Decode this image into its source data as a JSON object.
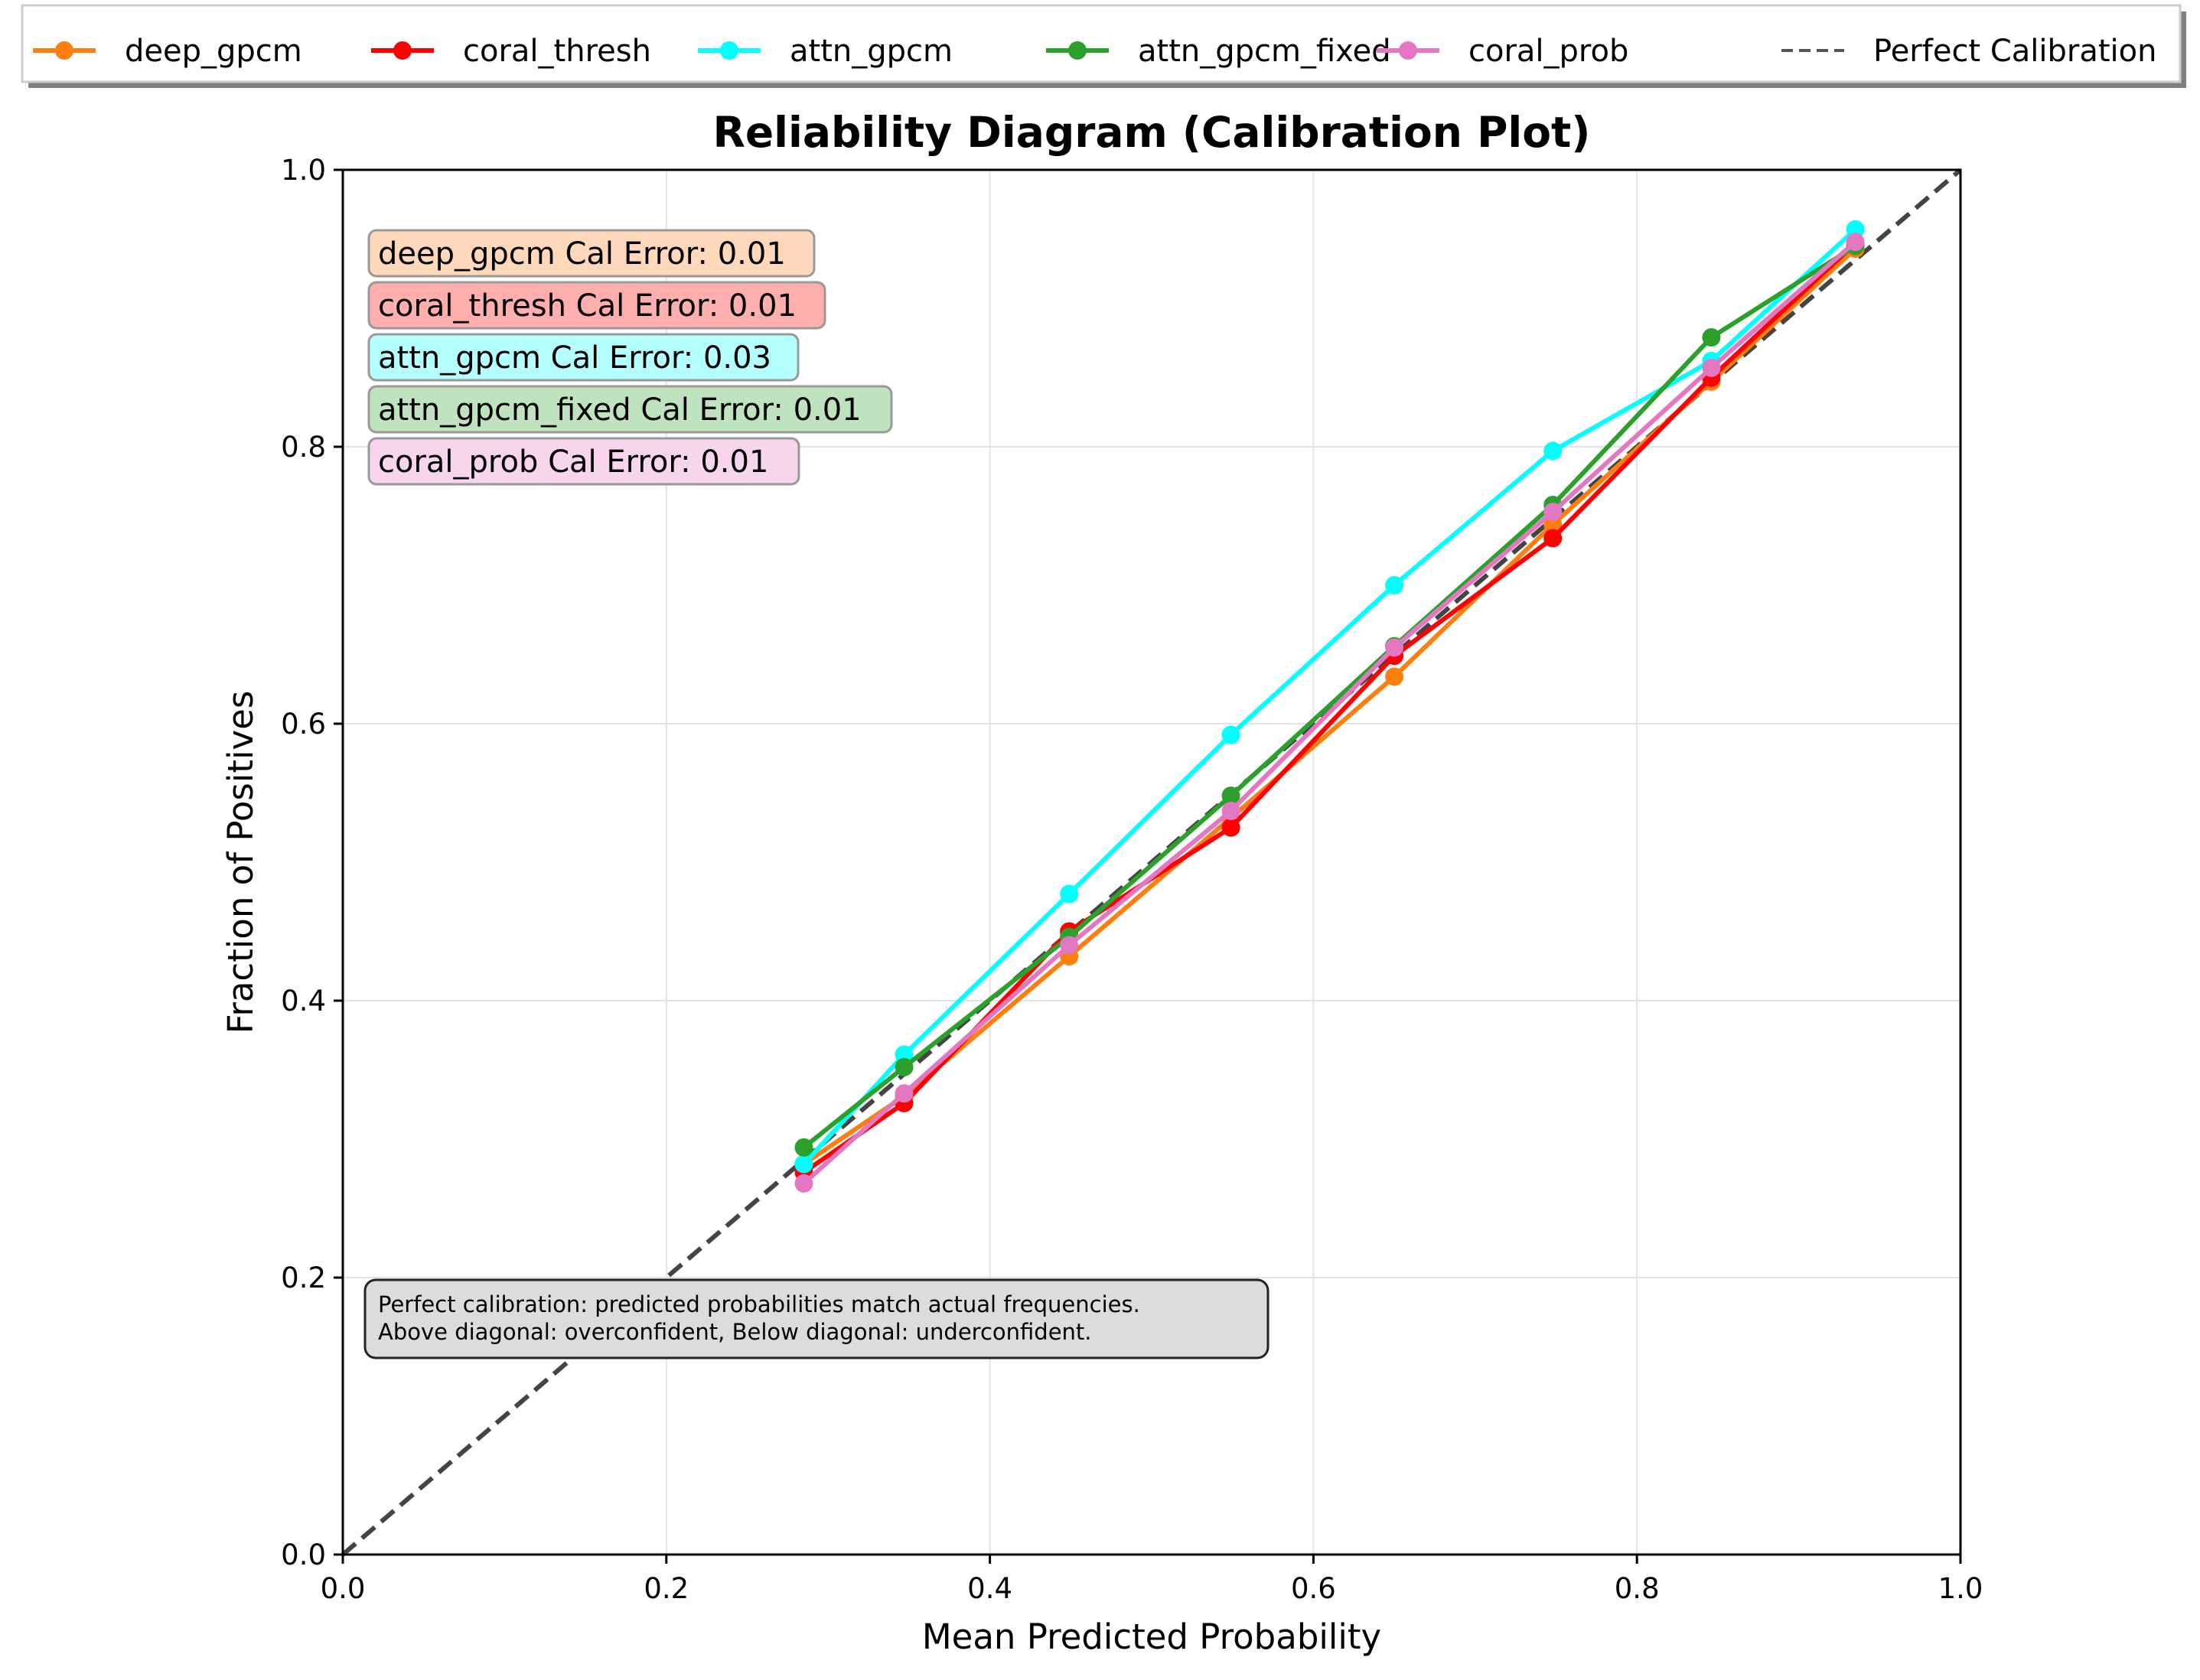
{
  "chart_data": {
    "type": "line",
    "title": "Reliability Diagram (Calibration Plot)",
    "xlabel": "Mean Predicted Probability",
    "ylabel": "Fraction of Positives",
    "xlim": [
      0.0,
      1.0
    ],
    "ylim": [
      0.0,
      1.0
    ],
    "xticks": [
      "0.0",
      "0.2",
      "0.4",
      "0.6",
      "0.8",
      "1.0"
    ],
    "yticks": [
      "0.0",
      "0.2",
      "0.4",
      "0.6",
      "0.8",
      "1.0"
    ],
    "grid": true,
    "legend_position": "top, outside plot",
    "series": [
      {
        "name": "deep_gpcm",
        "color": "#ff7f0e",
        "x": [
          0.285,
          0.347,
          0.449,
          0.549,
          0.65,
          0.748,
          0.846,
          0.935
        ],
        "y": [
          0.282,
          0.331,
          0.432,
          0.532,
          0.634,
          0.744,
          0.847,
          0.943
        ]
      },
      {
        "name": "coral_thresh",
        "color": "#ff0000",
        "x": [
          0.285,
          0.347,
          0.449,
          0.549,
          0.65,
          0.748,
          0.846,
          0.935
        ],
        "y": [
          0.276,
          0.326,
          0.45,
          0.525,
          0.649,
          0.734,
          0.85,
          0.947
        ]
      },
      {
        "name": "attn_gpcm",
        "color": "#00ffff",
        "x": [
          0.285,
          0.347,
          0.449,
          0.549,
          0.65,
          0.748,
          0.846,
          0.935
        ],
        "y": [
          0.282,
          0.361,
          0.477,
          0.592,
          0.7,
          0.797,
          0.862,
          0.957
        ]
      },
      {
        "name": "attn_gpcm_fixed",
        "color": "#2ca02c",
        "x": [
          0.285,
          0.347,
          0.449,
          0.549,
          0.65,
          0.748,
          0.846,
          0.935
        ],
        "y": [
          0.294,
          0.352,
          0.446,
          0.548,
          0.656,
          0.758,
          0.879,
          0.945
        ]
      },
      {
        "name": "coral_prob",
        "color": "#e377c2",
        "x": [
          0.285,
          0.347,
          0.449,
          0.549,
          0.65,
          0.748,
          0.846,
          0.935
        ],
        "y": [
          0.268,
          0.333,
          0.44,
          0.537,
          0.655,
          0.753,
          0.857,
          0.948
        ]
      }
    ],
    "reference": {
      "name": "Perfect Calibration",
      "color": "#444444",
      "x": [
        0,
        1
      ],
      "y": [
        0,
        1
      ]
    },
    "annotations": {
      "errors": [
        {
          "text": "deep_gpcm Cal Error: 0.01",
          "bg": "#ffd8bc"
        },
        {
          "text": "coral_thresh Cal Error: 0.01",
          "bg": "#ffaeae"
        },
        {
          "text": "attn_gpcm Cal Error: 0.03",
          "bg": "#b3ffff"
        },
        {
          "text": "attn_gpcm_fixed Cal Error: 0.01",
          "bg": "#bfe2bf"
        },
        {
          "text": "coral_prob Cal Error: 0.01",
          "bg": "#f6d5ed"
        }
      ],
      "note_lines": [
        "Perfect calibration: predicted probabilities match actual frequencies.",
        "Above diagonal: overconfident, Below diagonal: underconfident."
      ]
    }
  }
}
